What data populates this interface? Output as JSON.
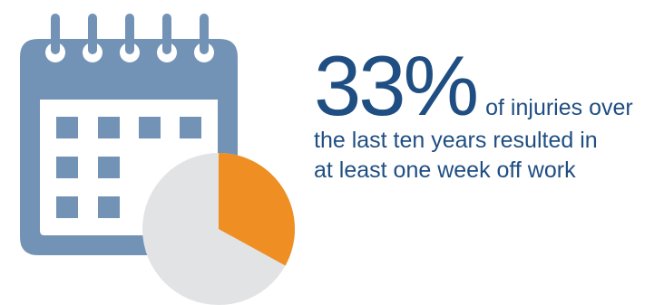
{
  "stat": {
    "percent": "33%",
    "text_lines": [
      "of injuries over",
      "the last ten years resulted in",
      "at least one week off work"
    ]
  },
  "pie": {
    "highlight_fraction": 0.33
  },
  "colors": {
    "calendar": "#7393b6",
    "pie_base": "#e2e3e5",
    "pie_highlight": "#ef8e22",
    "text": "#1f4e82",
    "background": "#ffffff"
  },
  "icons": [
    "calendar-icon",
    "pie-chart-icon"
  ]
}
